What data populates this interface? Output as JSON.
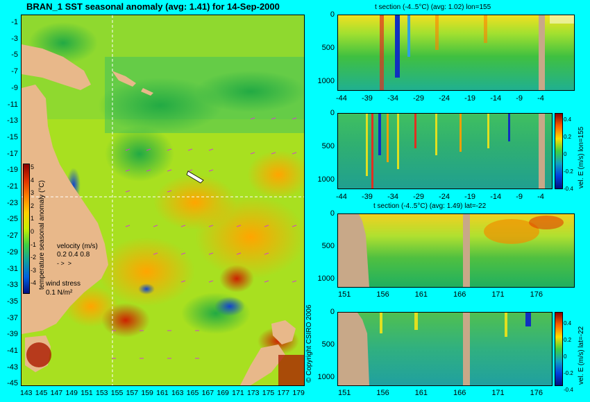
{
  "main_title": "BRAN_1  SST seasonal anomaly  (avg: 1.41) for 14-Sep-2000",
  "map": {
    "lat_ticks": [
      "-1",
      "-3",
      "-5",
      "-7",
      "-9",
      "-11",
      "-13",
      "-15",
      "-17",
      "-19",
      "-21",
      "-23",
      "-25",
      "-27",
      "-29",
      "-31",
      "-33",
      "-35",
      "-37",
      "-39",
      "-41",
      "-43",
      "-45"
    ],
    "lon_ticks": [
      "143",
      "145",
      "147",
      "149",
      "151",
      "153",
      "155",
      "157",
      "159",
      "161",
      "163",
      "165",
      "167",
      "169",
      "171",
      "173",
      "175",
      "177",
      "179"
    ],
    "colorbar_ticks": [
      "5",
      "4",
      "3",
      "2",
      "1",
      "0",
      "-1",
      "-2",
      "-3",
      "-4"
    ],
    "colorbar_label": "temperature seasonal anomaly (°C)",
    "velocity_label": "velocity (m/s)",
    "velocity_scale": "0.2 0.4 0.8",
    "wind_label": "wind stress",
    "wind_scale": "0.1 N/m²",
    "copyright": "© Copyright CSIRO 2006"
  },
  "panels": [
    {
      "title": "t section (-4..5°C) (avg: 1.02) lon=155",
      "y_ticks": [
        "0",
        "500",
        "1000"
      ],
      "x_ticks": [
        "-44",
        "-39",
        "-34",
        "-29",
        "-24",
        "-19",
        "-14",
        "-9",
        "-4"
      ]
    },
    {
      "title": "",
      "y_ticks": [
        "0",
        "500",
        "1000"
      ],
      "x_ticks": [
        "-44",
        "-39",
        "-34",
        "-29",
        "-24",
        "-19",
        "-14",
        "-9",
        "-4"
      ],
      "side_label": "vel. E (m/s) lon=155",
      "cb_ticks": [
        "0.4",
        "0.2",
        "0",
        "-0.2",
        "-0.4"
      ]
    },
    {
      "title": "t section (-4..5°C) (avg: 1.49) lat=-22",
      "y_ticks": [
        "0",
        "500",
        "1000"
      ],
      "x_ticks": [
        "151",
        "156",
        "161",
        "166",
        "171",
        "176"
      ]
    },
    {
      "title": "",
      "y_ticks": [
        "0",
        "500",
        "1000"
      ],
      "x_ticks": [
        "151",
        "156",
        "161",
        "166",
        "171",
        "176"
      ],
      "side_label": "vel. E (m/s) lat=-22",
      "cb_ticks": [
        "0.4",
        "0.2",
        "0",
        "-0.2",
        "-0.4"
      ]
    }
  ],
  "colors": {
    "background": "#00ffff",
    "land_map": "#e8b88a",
    "land_section": "#c8a888"
  }
}
